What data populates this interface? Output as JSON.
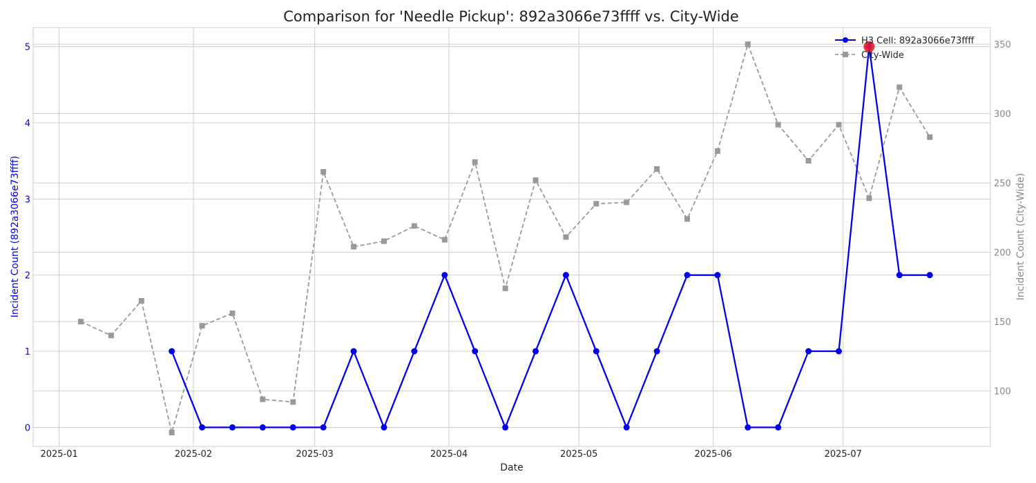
{
  "chart_data": {
    "type": "line",
    "title": "Comparison for 'Needle Pickup': 892a3066e73ffff vs. City-Wide",
    "xlabel": "Date",
    "ylabel_left": "Incident Count (892a3066e73ffff)",
    "ylabel_right": "Incident Count (City-Wide)",
    "x_tick_labels": [
      "2025-01",
      "2025-02",
      "2025-03",
      "2025-04",
      "2025-05",
      "2025-06",
      "2025-07"
    ],
    "x_tick_dates": [
      "2025-01-01",
      "2025-02-01",
      "2025-03-01",
      "2025-04-01",
      "2025-05-01",
      "2025-06-01",
      "2025-07-01"
    ],
    "xlim": [
      "2024-12-26",
      "2025-08-04"
    ],
    "ylim_left": [
      -0.25,
      5.25
    ],
    "ylim_right": [
      60,
      362
    ],
    "left_ticks": [
      0,
      1,
      2,
      3,
      4,
      5
    ],
    "right_ticks": [
      100,
      150,
      200,
      250,
      300,
      350
    ],
    "grid": true,
    "legend_position": "top-right",
    "highlight": {
      "date": "2025-07-07",
      "value": 5,
      "color": "#e81c2a"
    },
    "series": [
      {
        "name": "H3 Cell: 892a3066e73ffff",
        "axis": "left",
        "color": "#0000ee",
        "style": "solid",
        "marker": "circle",
        "dates": [
          "2025-01-27",
          "2025-02-03",
          "2025-02-10",
          "2025-02-17",
          "2025-02-24",
          "2025-03-03",
          "2025-03-10",
          "2025-03-17",
          "2025-03-24",
          "2025-03-31",
          "2025-04-07",
          "2025-04-14",
          "2025-04-21",
          "2025-04-28",
          "2025-05-05",
          "2025-05-12",
          "2025-05-19",
          "2025-05-26",
          "2025-06-02",
          "2025-06-09",
          "2025-06-16",
          "2025-06-23",
          "2025-06-30",
          "2025-07-07",
          "2025-07-14",
          "2025-07-21"
        ],
        "values": [
          1,
          0,
          0,
          0,
          0,
          0,
          1,
          0,
          1,
          2,
          1,
          0,
          1,
          2,
          1,
          0,
          1,
          2,
          2,
          0,
          0,
          1,
          1,
          5,
          2,
          2
        ]
      },
      {
        "name": "City-Wide",
        "axis": "right",
        "color": "#999999",
        "style": "dashed",
        "marker": "square",
        "dates": [
          "2025-01-06",
          "2025-01-13",
          "2025-01-20",
          "2025-01-27",
          "2025-02-03",
          "2025-02-10",
          "2025-02-17",
          "2025-02-24",
          "2025-03-03",
          "2025-03-10",
          "2025-03-17",
          "2025-03-24",
          "2025-03-31",
          "2025-04-07",
          "2025-04-14",
          "2025-04-21",
          "2025-04-28",
          "2025-05-05",
          "2025-05-12",
          "2025-05-19",
          "2025-05-26",
          "2025-06-02",
          "2025-06-09",
          "2025-06-16",
          "2025-06-23",
          "2025-06-30",
          "2025-07-07",
          "2025-07-14",
          "2025-07-21"
        ],
        "values": [
          150,
          140,
          165,
          70,
          147,
          156,
          94,
          92,
          258,
          204,
          208,
          219,
          209,
          265,
          174,
          252,
          211,
          235,
          236,
          260,
          224,
          273,
          350,
          292,
          266,
          292,
          239,
          319,
          283
        ]
      }
    ]
  }
}
